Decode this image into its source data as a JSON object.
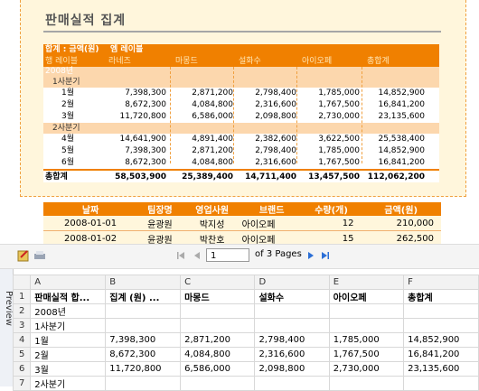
{
  "report": {
    "title": "판매실적 집계",
    "pivot": {
      "header_left": "합계 : 금액(원)",
      "header_right": "엠 레이블",
      "row_label": "행 레이블",
      "columns": [
        "라네즈",
        "마몽드",
        "설화수",
        "아이오페",
        "총합계"
      ],
      "year": "2008년",
      "groups": [
        {
          "label": "1사분기",
          "rows": [
            {
              "label": "1월",
              "values": [
                "7,398,300",
                "2,871,200",
                "2,798,400",
                "1,785,000",
                "14,852,900"
              ]
            },
            {
              "label": "2월",
              "values": [
                "8,672,300",
                "4,084,800",
                "2,316,600",
                "1,767,500",
                "16,841,200"
              ]
            },
            {
              "label": "3월",
              "values": [
                "11,720,800",
                "6,586,000",
                "2,098,800",
                "2,730,000",
                "23,135,600"
              ]
            }
          ]
        },
        {
          "label": "2사분기",
          "rows": [
            {
              "label": "4월",
              "values": [
                "14,641,900",
                "4,891,400",
                "2,382,600",
                "3,622,500",
                "25,538,400"
              ]
            },
            {
              "label": "5월",
              "values": [
                "7,398,300",
                "2,871,200",
                "2,798,400",
                "1,785,000",
                "14,852,900"
              ]
            },
            {
              "label": "6월",
              "values": [
                "8,672,300",
                "4,084,800",
                "2,316,600",
                "1,767,500",
                "16,841,200"
              ]
            }
          ]
        }
      ],
      "total_label": "총합계",
      "totals": [
        "58,503,900",
        "25,389,400",
        "14,711,400",
        "13,457,500",
        "112,062,200"
      ]
    },
    "list": {
      "headers": [
        "날짜",
        "팀장명",
        "영업사원",
        "브랜드",
        "수량(개)",
        "금액(원)"
      ],
      "rows": [
        [
          "2008-01-01",
          "윤광원",
          "박지성",
          "아이오페",
          "12",
          "210,000"
        ],
        [
          "2008-01-02",
          "윤광원",
          "박찬호",
          "아이오페",
          "15",
          "262,500"
        ]
      ]
    }
  },
  "toolbar": {
    "page_value": "1",
    "page_of": "of 3 Pages",
    "icons": [
      "export-icon",
      "print-icon",
      "first-page-icon",
      "prev-page-icon",
      "next-page-icon",
      "last-page-icon"
    ]
  },
  "sheet": {
    "tab_label": "Preview",
    "columns": [
      "A",
      "B",
      "C",
      "D",
      "E",
      "F"
    ],
    "rows": [
      {
        "n": "1",
        "bold": true,
        "cells": [
          "판매실적 합...",
          "집계 (원) ...",
          "마몽드",
          "설화수",
          "아이오페",
          "총합계"
        ]
      },
      {
        "n": "2",
        "cells": [
          "2008년",
          "",
          "",
          "",
          "",
          ""
        ]
      },
      {
        "n": "3",
        "cells": [
          "1사분기",
          "",
          "",
          "",
          "",
          ""
        ]
      },
      {
        "n": "4",
        "cells": [
          "1월",
          "7,398,300",
          "2,871,200",
          "2,798,400",
          "1,785,000",
          "14,852,900"
        ]
      },
      {
        "n": "5",
        "cells": [
          "2월",
          "8,672,300",
          "4,084,800",
          "2,316,600",
          "1,767,500",
          "16,841,200"
        ]
      },
      {
        "n": "6",
        "cells": [
          "3월",
          "11,720,800",
          "6,586,000",
          "2,098,800",
          "2,730,000",
          "23,135,600"
        ]
      },
      {
        "n": "7",
        "cells": [
          "2사분기",
          "",
          "",
          "",
          "",
          ""
        ]
      }
    ]
  },
  "colors": {
    "accent": "#f08000",
    "light": "#fcd7ad",
    "cream": "#fff6dc"
  }
}
